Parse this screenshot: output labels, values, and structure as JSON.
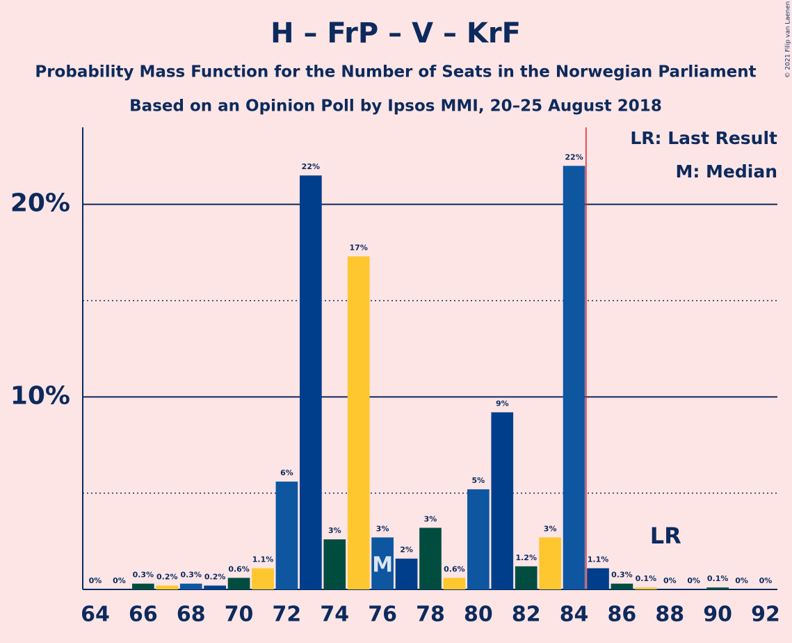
{
  "chart_data": {
    "type": "bar",
    "title": "H – FrP – V – KrF",
    "subtitle": "Probability Mass Function for the Number of Seats in the Norwegian Parliament",
    "subtitle2": "Based on an Opinion Poll by Ipsos MMI, 20–25 August 2018",
    "copyright": "© 2021 Filip van Laenen",
    "legend": [
      "LR: Last Result",
      "M: Median"
    ],
    "categories": [
      64,
      65,
      66,
      67,
      68,
      69,
      70,
      71,
      72,
      73,
      74,
      75,
      76,
      77,
      78,
      79,
      80,
      81,
      82,
      83,
      84,
      85,
      86,
      87,
      88,
      89,
      90,
      91,
      92
    ],
    "values": [
      0,
      0,
      0.3,
      0.2,
      0.3,
      0.2,
      0.6,
      1.1,
      5.6,
      21.5,
      2.6,
      17.3,
      2.7,
      1.6,
      3.2,
      0.6,
      5.2,
      9.2,
      1.2,
      2.7,
      22.0,
      1.1,
      0.3,
      0.1,
      0,
      0,
      0.1,
      0,
      0
    ],
    "value_labels": [
      "0%",
      "0%",
      "0.3%",
      "0.2%",
      "0.3%",
      "0.2%",
      "0.6%",
      "1.1%",
      "6%",
      "22%",
      "3%",
      "17%",
      "3%",
      "2%",
      "3%",
      "0.6%",
      "5%",
      "9%",
      "1.2%",
      "3%",
      "22%",
      "1.1%",
      "0.3%",
      "0.1%",
      "0%",
      "0%",
      "0.1%",
      "0%",
      "0%"
    ],
    "colors": [
      "#0e56a0",
      "#003e8c",
      "#004d3f",
      "#ffc72f",
      "#0e56a0",
      "#003e8c",
      "#004d3f",
      "#ffc72f",
      "#0e56a0",
      "#003e8c",
      "#004d3f",
      "#ffc72f",
      "#0e56a0",
      "#003e8c",
      "#004d3f",
      "#ffc72f",
      "#0e56a0",
      "#003e8c",
      "#004d3f",
      "#ffc72f",
      "#0e56a0",
      "#003e8c",
      "#004d3f",
      "#ffc72f",
      "#0e56a0",
      "#003e8c",
      "#004d3f",
      "#ffc72f",
      "#0e56a0"
    ],
    "xlim": [
      64,
      92
    ],
    "xticks": [
      64,
      66,
      68,
      70,
      72,
      74,
      76,
      78,
      80,
      82,
      84,
      86,
      88,
      90,
      92
    ],
    "ylim": [
      0,
      24
    ],
    "yticks": [
      {
        "value": 10,
        "label": "10%"
      },
      {
        "value": 20,
        "label": "20%"
      }
    ],
    "minor_gridlines": [
      5,
      15
    ],
    "majority_line": 84.5,
    "median": {
      "x": 76,
      "label": "M"
    },
    "last_result": {
      "x": 88,
      "label": "LR"
    }
  }
}
